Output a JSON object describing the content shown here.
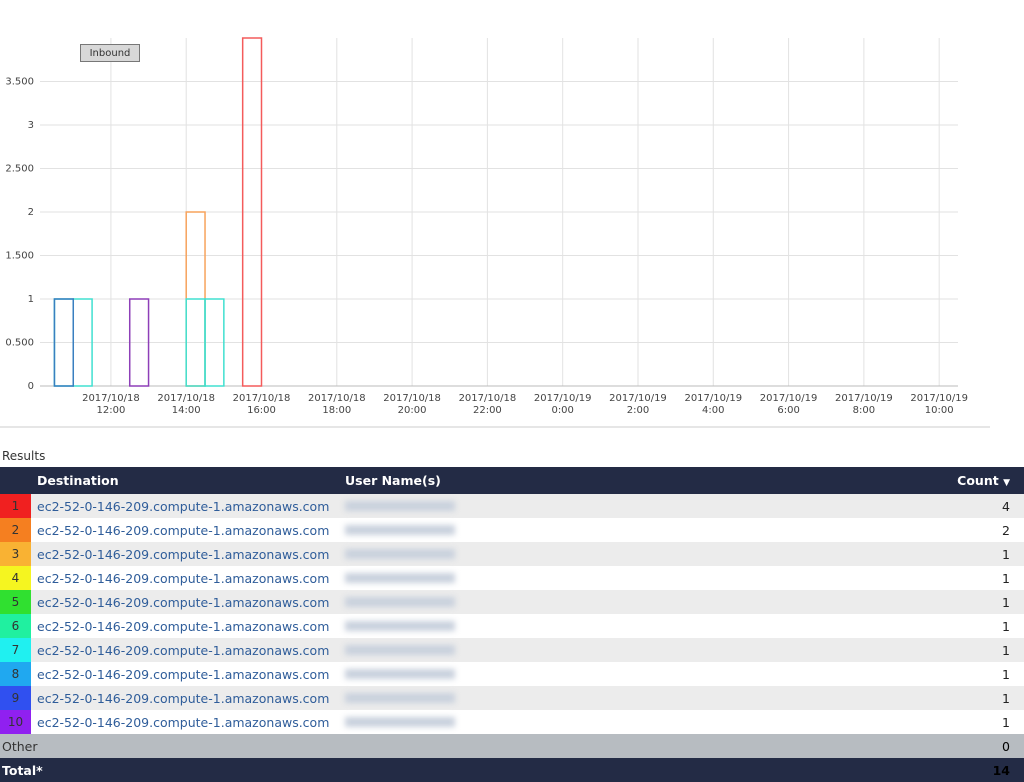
{
  "chart_data": {
    "type": "bar",
    "button": "Inbound",
    "xlim": [
      "2017-10-18T10:07",
      "2017-10-19T10:30"
    ],
    "xticks": [
      {
        "value": "2017-10-18T12:00",
        "label": [
          "2017/10/18",
          "12:00"
        ]
      },
      {
        "value": "2017-10-18T14:00",
        "label": [
          "2017/10/18",
          "14:00"
        ]
      },
      {
        "value": "2017-10-18T16:00",
        "label": [
          "2017/10/18",
          "16:00"
        ]
      },
      {
        "value": "2017-10-18T18:00",
        "label": [
          "2017/10/18",
          "18:00"
        ]
      },
      {
        "value": "2017-10-18T20:00",
        "label": [
          "2017/10/18",
          "20:00"
        ]
      },
      {
        "value": "2017-10-18T22:00",
        "label": [
          "2017/10/18",
          "22:00"
        ]
      },
      {
        "value": "2017-10-19T00:00",
        "label": [
          "2017/10/19",
          "0:00"
        ]
      },
      {
        "value": "2017-10-19T02:00",
        "label": [
          "2017/10/19",
          "2:00"
        ]
      },
      {
        "value": "2017-10-19T04:00",
        "label": [
          "2017/10/19",
          "4:00"
        ]
      },
      {
        "value": "2017-10-19T06:00",
        "label": [
          "2017/10/19",
          "6:00"
        ]
      },
      {
        "value": "2017-10-19T08:00",
        "label": [
          "2017/10/19",
          "8:00"
        ]
      },
      {
        "value": "2017-10-19T10:00",
        "label": [
          "2017/10/19",
          "10:00"
        ]
      }
    ],
    "ylim": [
      0,
      4
    ],
    "yticks": [
      0,
      {
        "value": 0.5,
        "label": "0.500"
      },
      1,
      {
        "value": 1.5,
        "label": "1.500"
      },
      2,
      {
        "value": 2.5,
        "label": "2.500"
      },
      3,
      {
        "value": 3.5,
        "label": "3.500"
      }
    ],
    "grid": true,
    "bars": [
      {
        "start": "2017-10-18T10:30",
        "end": "2017-10-18T11:00",
        "value": 1,
        "color": "#40e0d0"
      },
      {
        "start": "2017-10-18T11:00",
        "end": "2017-10-18T11:30",
        "value": 1,
        "color": "#40e0d0"
      },
      {
        "start": "2017-10-18T10:30",
        "end": "2017-10-18T11:00",
        "value": 1,
        "color": "#3a7fc0"
      },
      {
        "start": "2017-10-18T12:30",
        "end": "2017-10-18T13:00",
        "value": 1,
        "color": "#8e3fb8"
      },
      {
        "start": "2017-10-18T14:00",
        "end": "2017-10-18T14:30",
        "value": 2,
        "color": "#f7a35c"
      },
      {
        "start": "2017-10-18T14:00",
        "end": "2017-10-18T14:30",
        "value": 1,
        "color": "#40e0d0"
      },
      {
        "start": "2017-10-18T14:30",
        "end": "2017-10-18T15:00",
        "value": 1,
        "color": "#40e0d0"
      },
      {
        "start": "2017-10-18T15:30",
        "end": "2017-10-18T16:00",
        "value": 4,
        "color": "#f45b5b"
      }
    ]
  },
  "results_label": "Results",
  "table": {
    "columns": [
      "Destination",
      "User Name(s)",
      "Count"
    ],
    "rows": [
      {
        "rank": "1",
        "color": "#f02020",
        "destination": "ec2-52-0-146-209.compute-1.amazonaws.com",
        "count": 4
      },
      {
        "rank": "2",
        "color": "#f57f20",
        "destination": "ec2-52-0-146-209.compute-1.amazonaws.com",
        "count": 2
      },
      {
        "rank": "3",
        "color": "#f9b233",
        "destination": "ec2-52-0-146-209.compute-1.amazonaws.com",
        "count": 1
      },
      {
        "rank": "4",
        "color": "#f5f520",
        "destination": "ec2-52-0-146-209.compute-1.amazonaws.com",
        "count": 1
      },
      {
        "rank": "5",
        "color": "#30e030",
        "destination": "ec2-52-0-146-209.compute-1.amazonaws.com",
        "count": 1
      },
      {
        "rank": "6",
        "color": "#20f0a0",
        "destination": "ec2-52-0-146-209.compute-1.amazonaws.com",
        "count": 1
      },
      {
        "rank": "7",
        "color": "#20f0f0",
        "destination": "ec2-52-0-146-209.compute-1.amazonaws.com",
        "count": 1
      },
      {
        "rank": "8",
        "color": "#20a8f0",
        "destination": "ec2-52-0-146-209.compute-1.amazonaws.com",
        "count": 1
      },
      {
        "rank": "9",
        "color": "#3050f0",
        "destination": "ec2-52-0-146-209.compute-1.amazonaws.com",
        "count": 1
      },
      {
        "rank": "10",
        "color": "#9020f0",
        "destination": "ec2-52-0-146-209.compute-1.amazonaws.com",
        "count": 1
      }
    ],
    "other": {
      "label": "Other",
      "count": 0
    },
    "total": {
      "label": "Total*",
      "count": 14
    }
  }
}
